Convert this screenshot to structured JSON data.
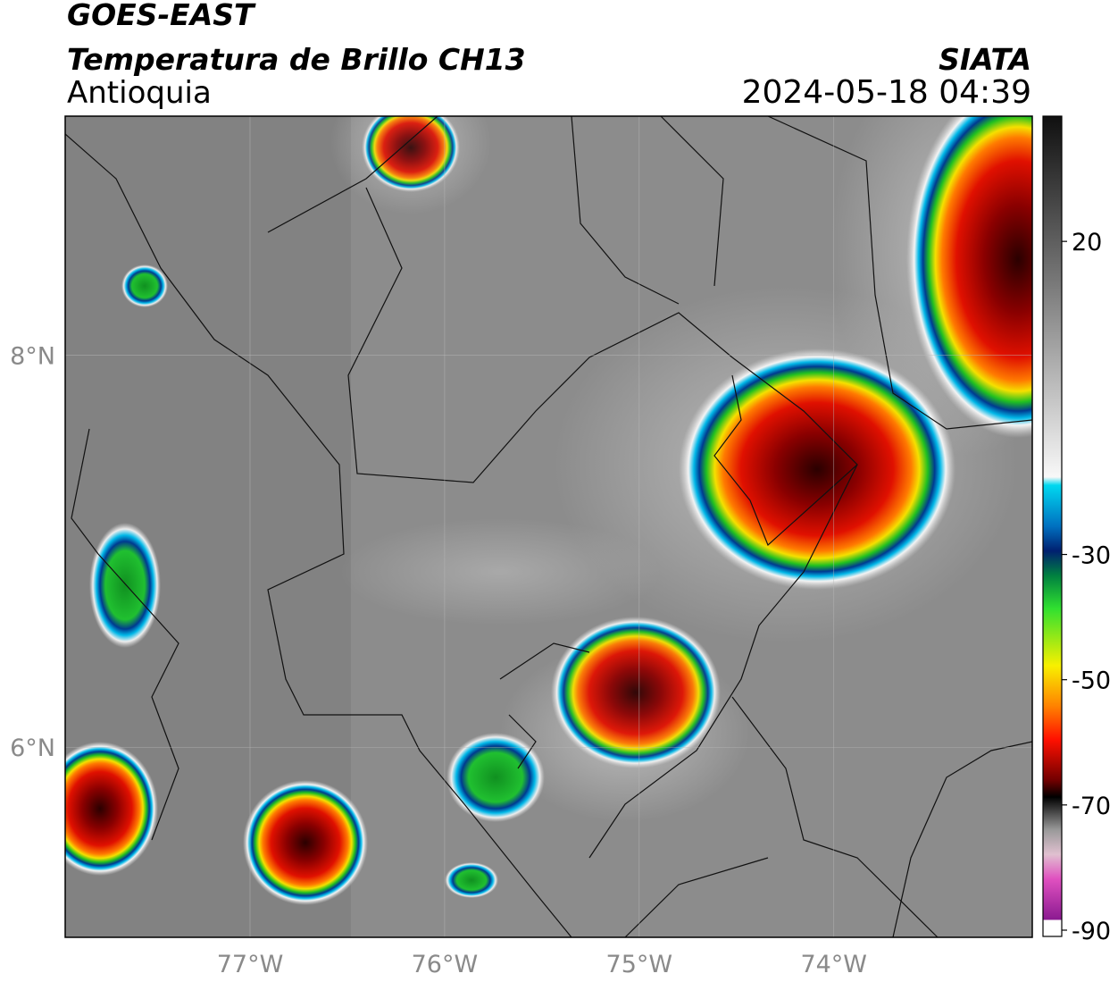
{
  "header": {
    "title": "GOES-EAST",
    "subtitle": "Temperatura de Brillo CH13",
    "region": "Antioquia",
    "source": "SIATA",
    "timestamp": "2024-05-18 04:39"
  },
  "map": {
    "xlim": [
      -77.95,
      -72.98
    ],
    "ylim": [
      5.03,
      9.22
    ],
    "xticks": [
      {
        "value": -77,
        "label": "77°W"
      },
      {
        "value": -76,
        "label": "76°W"
      },
      {
        "value": -75,
        "label": "75°W"
      },
      {
        "value": -74,
        "label": "74°W"
      }
    ],
    "yticks": [
      {
        "value": 8,
        "label": "8°N"
      },
      {
        "value": 6,
        "label": "6°N"
      }
    ]
  },
  "colorbar": {
    "lim": [
      -91,
      40
    ],
    "ticks": [
      20,
      -30,
      -50,
      -70,
      -90
    ]
  }
}
